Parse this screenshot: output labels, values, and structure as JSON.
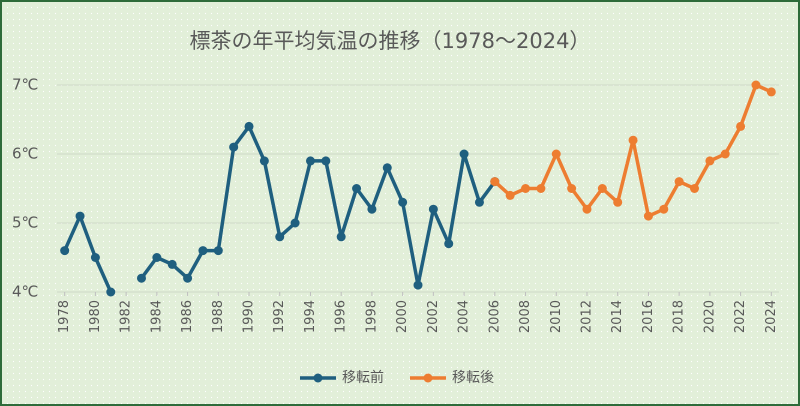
{
  "chart_data": {
    "type": "line",
    "title": "標茶の年平均気温の推移（1978～2024）",
    "xlim": [
      1977.5,
      2024.5
    ],
    "xticks": [
      1978,
      1980,
      1982,
      1984,
      1986,
      1988,
      1990,
      1992,
      1994,
      1996,
      1998,
      2000,
      2002,
      2004,
      2006,
      2008,
      2010,
      2012,
      2014,
      2016,
      2018,
      2020,
      2022,
      2024
    ],
    "ylim": [
      4,
      7
    ],
    "yticks": [
      {
        "value": 4,
        "label": "4℃"
      },
      {
        "value": 5,
        "label": "5℃"
      },
      {
        "value": 6,
        "label": "6℃"
      },
      {
        "value": 7,
        "label": "7℃"
      }
    ],
    "grid": true,
    "legend": "bottom",
    "series": [
      {
        "name": "移転前",
        "color": "#1f5f7f",
        "x": [
          1978,
          1979,
          1980,
          1981,
          1982,
          1983,
          1984,
          1985,
          1986,
          1987,
          1988,
          1989,
          1990,
          1991,
          1992,
          1993,
          1994,
          1995,
          1996,
          1997,
          1998,
          1999,
          2000,
          2001,
          2002,
          2003,
          2004,
          2005,
          2006
        ],
        "values": [
          4.6,
          5.1,
          4.5,
          4.0,
          null,
          4.2,
          4.5,
          4.4,
          4.2,
          4.6,
          4.6,
          6.1,
          6.4,
          5.9,
          4.8,
          5.0,
          5.9,
          5.9,
          4.8,
          5.5,
          5.2,
          5.8,
          5.3,
          4.1,
          5.2,
          4.7,
          6.0,
          5.3,
          5.6
        ]
      },
      {
        "name": "移転後",
        "color": "#ed7d31",
        "x": [
          2006,
          2007,
          2008,
          2009,
          2010,
          2011,
          2012,
          2013,
          2014,
          2015,
          2016,
          2017,
          2018,
          2019,
          2020,
          2021,
          2022,
          2023,
          2024
        ],
        "values": [
          5.6,
          5.4,
          5.5,
          5.5,
          6.0,
          5.5,
          5.2,
          5.5,
          5.3,
          6.2,
          5.1,
          5.2,
          5.6,
          5.5,
          5.9,
          6.0,
          6.4,
          7.0,
          6.9
        ]
      }
    ]
  }
}
